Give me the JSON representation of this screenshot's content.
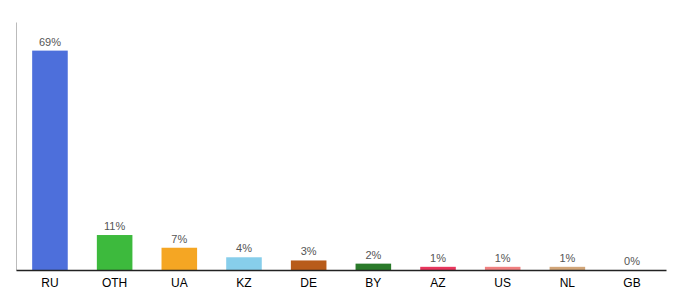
{
  "chart_data": {
    "type": "bar",
    "categories": [
      "RU",
      "OTH",
      "UA",
      "KZ",
      "DE",
      "BY",
      "AZ",
      "US",
      "NL",
      "GB"
    ],
    "values": [
      69,
      11,
      7,
      4,
      3,
      2,
      1,
      1,
      1,
      0
    ],
    "value_labels": [
      "69%",
      "11%",
      "7%",
      "4%",
      "3%",
      "2%",
      "1%",
      "1%",
      "1%",
      "0%"
    ],
    "colors": [
      "#4d6fdb",
      "#3dba3d",
      "#f5a623",
      "#87ceeb",
      "#b85c1a",
      "#2a7a2a",
      "#e8365d",
      "#f08080",
      "#d2a679",
      "#cccccc"
    ],
    "ylim": [
      0,
      78
    ],
    "data_labels": true,
    "tick_labels": "x",
    "grid": false
  }
}
